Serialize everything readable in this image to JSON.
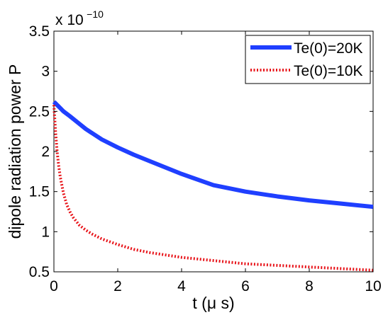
{
  "chart_data": {
    "type": "line",
    "xlabel": "t (μ s)",
    "ylabel": "dipole radiation power P",
    "y_multiplier": {
      "prefix": "x 10",
      "exponent": "−10"
    },
    "xlim": [
      0,
      10
    ],
    "ylim": [
      0.5,
      3.5
    ],
    "x_ticks": [
      "0",
      "2",
      "4",
      "6",
      "8",
      "10"
    ],
    "y_ticks": [
      "0.5",
      "1",
      "1.5",
      "2",
      "2.5",
      "3",
      "3.5"
    ],
    "grid": false,
    "legend_position": "top-right",
    "series": [
      {
        "name": "Te(0)=20K",
        "color": "#1f3fff",
        "style": "solid",
        "x": [
          0,
          0.1,
          0.2,
          0.3,
          0.5,
          0.75,
          1,
          1.5,
          2,
          2.5,
          3,
          4,
          5,
          6,
          7,
          8,
          9,
          10
        ],
        "y": [
          2.62,
          2.58,
          2.54,
          2.5,
          2.44,
          2.36,
          2.28,
          2.15,
          2.05,
          1.96,
          1.88,
          1.72,
          1.58,
          1.5,
          1.44,
          1.39,
          1.35,
          1.31
        ]
      },
      {
        "name": "Te(0)=10K",
        "color": "#e8141a",
        "style": "dotted",
        "x": [
          0,
          0.05,
          0.1,
          0.15,
          0.2,
          0.3,
          0.4,
          0.5,
          0.6,
          0.8,
          1,
          1.2,
          1.5,
          2,
          2.5,
          3,
          4,
          5,
          6,
          7,
          8,
          9,
          10
        ],
        "y": [
          2.58,
          2.25,
          2.0,
          1.82,
          1.68,
          1.48,
          1.34,
          1.25,
          1.18,
          1.08,
          1.02,
          0.97,
          0.91,
          0.84,
          0.78,
          0.74,
          0.68,
          0.64,
          0.6,
          0.58,
          0.56,
          0.54,
          0.52
        ]
      }
    ]
  }
}
